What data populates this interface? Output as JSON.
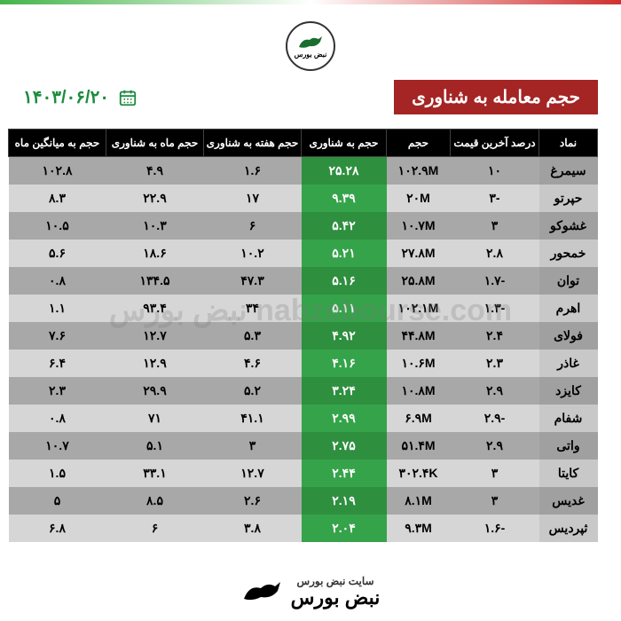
{
  "meta": {
    "title": "حجم معامله به شناوری",
    "date": "۱۴۰۳/۰۶/۲۰",
    "watermark": "nabzebourse.com نبض بورس",
    "footer_small": "سایت نبض بورس",
    "footer_big": "نبض بورس"
  },
  "colors": {
    "title_bg": "#a52424",
    "title_fg": "#ffffff",
    "date_fg": "#1d8c3f",
    "header_bg": "#000000",
    "header_fg": "#ffffff",
    "row_even_bg": "#a8a8a8",
    "row_odd_bg": "#d6d6d6",
    "symbol_even_bg": "#a0a0a0",
    "symbol_odd_bg": "#c8c8c8",
    "green_even": "#2e8f3f",
    "green_odd": "#35a34a",
    "negative": "#c22222",
    "positive": "#1a6e30"
  },
  "table": {
    "type": "table",
    "columns": [
      "نماد",
      "درصد آخرین قیمت",
      "حجم",
      "حجم به شناوری",
      "حجم هفته به شناوری",
      "حجم ماه به شناوری",
      "حجم به میانگین ماه"
    ],
    "column_styles": {
      "highlight_col_index": 3
    },
    "rows": [
      {
        "symbol": "سیمرغ",
        "pct": "۱۰",
        "pct_sign": 1,
        "vol": "۱۰۲.۹M",
        "v2f": "۲۵.۲۸",
        "w2f": "۱.۶",
        "m2f": "۴.۹",
        "v2avg": "۱۰۲.۸"
      },
      {
        "symbol": "حپرتو",
        "pct": "-۳",
        "pct_sign": -1,
        "vol": "۲۰M",
        "v2f": "۹.۳۹",
        "w2f": "۱۷",
        "m2f": "۲۲.۹",
        "v2avg": "۸.۳"
      },
      {
        "symbol": "غشوکو",
        "pct": "۳",
        "pct_sign": 1,
        "vol": "۱۰.۷M",
        "v2f": "۵.۴۲",
        "w2f": "۶",
        "m2f": "۱۰.۳",
        "v2avg": "۱۰.۵"
      },
      {
        "symbol": "خمحور",
        "pct": "۲.۸",
        "pct_sign": 1,
        "vol": "۲۷.۸M",
        "v2f": "۵.۲۱",
        "w2f": "۱۰.۲",
        "m2f": "۱۸.۶",
        "v2avg": "۵.۶"
      },
      {
        "symbol": "توان",
        "pct": "-۱.۷",
        "pct_sign": -1,
        "vol": "۲۵.۸M",
        "v2f": "۵.۱۶",
        "w2f": "۴۷.۳",
        "m2f": "۱۳۴.۵",
        "v2avg": "۰.۸"
      },
      {
        "symbol": "اهرم",
        "pct": "-۱.۳",
        "pct_sign": -1,
        "vol": "۱۰۲.۱M",
        "v2f": "۵.۱۱",
        "w2f": "۳۴",
        "m2f": "۹۳.۴",
        "v2avg": "۱.۱"
      },
      {
        "symbol": "فولای",
        "pct": "۲.۴",
        "pct_sign": 1,
        "vol": "۴۴.۸M",
        "v2f": "۴.۹۲",
        "w2f": "۵.۳",
        "m2f": "۱۲.۷",
        "v2avg": "۷.۶"
      },
      {
        "symbol": "غاذر",
        "pct": "۲.۳",
        "pct_sign": 1,
        "vol": "۱۰.۶M",
        "v2f": "۴.۱۶",
        "w2f": "۴.۶",
        "m2f": "۱۲.۹",
        "v2avg": "۶.۴"
      },
      {
        "symbol": "کایزد",
        "pct": "۲.۹",
        "pct_sign": 1,
        "vol": "۱۰.۸M",
        "v2f": "۳.۲۴",
        "w2f": "۵.۲",
        "m2f": "۲۹.۹",
        "v2avg": "۲.۳"
      },
      {
        "symbol": "شفام",
        "pct": "-۲.۹",
        "pct_sign": -1,
        "vol": "۶.۹M",
        "v2f": "۲.۹۹",
        "w2f": "۴۱.۱",
        "m2f": "۷۱",
        "v2avg": "۰.۸"
      },
      {
        "symbol": "واتی",
        "pct": "۲.۹",
        "pct_sign": 1,
        "vol": "۵۱.۴M",
        "v2f": "۲.۷۵",
        "w2f": "۳",
        "m2f": "۵.۱",
        "v2avg": "۱۰.۷"
      },
      {
        "symbol": "کایتا",
        "pct": "۳",
        "pct_sign": 1,
        "vol": "۳۰۲.۴K",
        "v2f": "۲.۴۴",
        "w2f": "۱۲.۷",
        "m2f": "۳۳.۱",
        "v2avg": "۱.۵"
      },
      {
        "symbol": "غدیس",
        "pct": "۳",
        "pct_sign": 1,
        "vol": "۸.۱M",
        "v2f": "۲.۱۹",
        "w2f": "۲.۶",
        "m2f": "۸.۵",
        "v2avg": "۵"
      },
      {
        "symbol": "ثپردیس",
        "pct": "-۱.۶",
        "pct_sign": -1,
        "vol": "۹.۳M",
        "v2f": "۲.۰۴",
        "w2f": "۳.۸",
        "m2f": "۶",
        "v2avg": "۶.۸"
      }
    ]
  }
}
